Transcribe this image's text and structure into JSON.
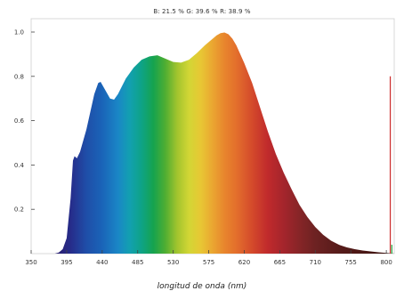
{
  "stats": {
    "text": "B: 21.5 %  G: 39.6 %  R: 38.9 %"
  },
  "chart_data": {
    "type": "area",
    "title": "",
    "xlabel": "longitud de onda (nm)",
    "ylabel": "",
    "xlim": [
      350,
      810
    ],
    "ylim": [
      0,
      1.0
    ],
    "grid": false,
    "x_ticks": [
      350,
      395,
      440,
      485,
      530,
      575,
      620,
      665,
      710,
      755,
      800
    ],
    "y_ticks": [
      0.2,
      0.4,
      0.6,
      0.8,
      1.0
    ],
    "y_tick_labels": [
      "0.2",
      "0.4",
      "0.6",
      "0.8",
      "1.0"
    ],
    "spectrum_fill": "wavelength rainbow",
    "series": [
      {
        "values": [
          [
            350,
            0.0
          ],
          [
            380,
            0.0
          ],
          [
            385,
            0.005
          ],
          [
            390,
            0.02
          ],
          [
            395,
            0.07
          ],
          [
            400,
            0.25
          ],
          [
            403,
            0.42
          ],
          [
            405,
            0.44
          ],
          [
            408,
            0.43
          ],
          [
            412,
            0.46
          ],
          [
            420,
            0.56
          ],
          [
            430,
            0.72
          ],
          [
            435,
            0.77
          ],
          [
            438,
            0.775
          ],
          [
            442,
            0.75
          ],
          [
            450,
            0.7
          ],
          [
            455,
            0.695
          ],
          [
            460,
            0.72
          ],
          [
            470,
            0.79
          ],
          [
            480,
            0.84
          ],
          [
            490,
            0.875
          ],
          [
            500,
            0.89
          ],
          [
            510,
            0.895
          ],
          [
            520,
            0.88
          ],
          [
            530,
            0.865
          ],
          [
            540,
            0.862
          ],
          [
            550,
            0.875
          ],
          [
            560,
            0.905
          ],
          [
            570,
            0.94
          ],
          [
            580,
            0.97
          ],
          [
            585,
            0.985
          ],
          [
            590,
            0.995
          ],
          [
            595,
            0.998
          ],
          [
            600,
            0.99
          ],
          [
            605,
            0.97
          ],
          [
            610,
            0.94
          ],
          [
            620,
            0.86
          ],
          [
            630,
            0.77
          ],
          [
            640,
            0.66
          ],
          [
            650,
            0.55
          ],
          [
            660,
            0.45
          ],
          [
            670,
            0.365
          ],
          [
            680,
            0.29
          ],
          [
            690,
            0.22
          ],
          [
            700,
            0.165
          ],
          [
            710,
            0.12
          ],
          [
            720,
            0.085
          ],
          [
            730,
            0.058
          ],
          [
            740,
            0.04
          ],
          [
            750,
            0.028
          ],
          [
            760,
            0.02
          ],
          [
            770,
            0.014
          ],
          [
            780,
            0.01
          ],
          [
            790,
            0.006
          ],
          [
            800,
            0.003
          ],
          [
            810,
            0.0
          ]
        ]
      }
    ],
    "markers": [
      {
        "x": 805,
        "y": 0.8,
        "color": "#cc2b2b"
      },
      {
        "x": 807,
        "y": 0.04,
        "color": "#22aa44"
      }
    ]
  }
}
